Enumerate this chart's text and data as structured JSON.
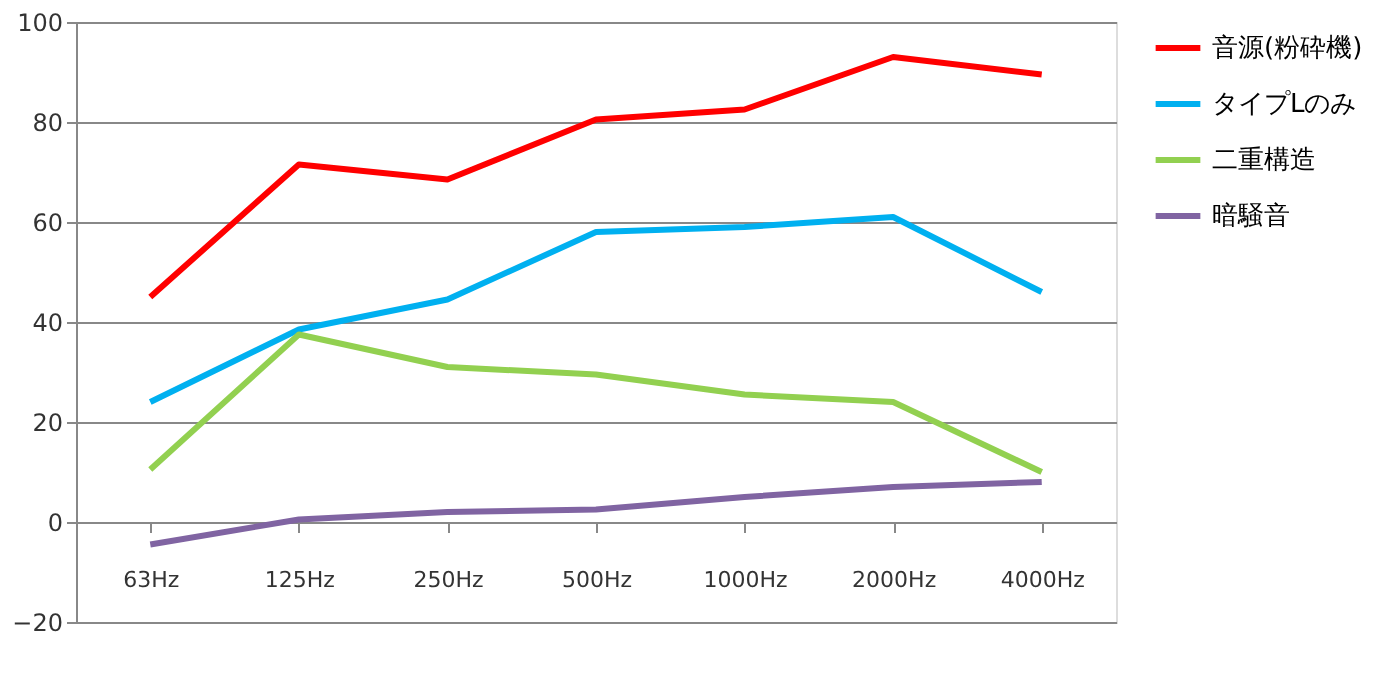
{
  "chart_data": {
    "type": "line",
    "categories": [
      "63Hz",
      "125Hz",
      "250Hz",
      "500Hz",
      "1000Hz",
      "2000Hz",
      "4000Hz"
    ],
    "series": [
      {
        "name": "音源(粉砕機)",
        "color": "#ff0000",
        "values": [
          45,
          71.5,
          68.5,
          80.5,
          82.5,
          93,
          89.5
        ]
      },
      {
        "name": "タイプLのみ",
        "color": "#00b0f0",
        "values": [
          24,
          38.5,
          44.5,
          58,
          59,
          61,
          46
        ]
      },
      {
        "name": "二重構造",
        "color": "#92d050",
        "values": [
          10.5,
          37.5,
          31,
          29.5,
          25.5,
          24,
          10
        ]
      },
      {
        "name": "暗騒音",
        "color": "#8064a2",
        "values": [
          -4.5,
          0.5,
          2,
          2.5,
          5,
          7,
          8
        ]
      }
    ],
    "ylim": [
      -20,
      100
    ],
    "yticks": [
      -20,
      0,
      20,
      40,
      60,
      80,
      100
    ],
    "grid": "y",
    "legend": "right",
    "marker": "none",
    "line_style": "solid"
  }
}
